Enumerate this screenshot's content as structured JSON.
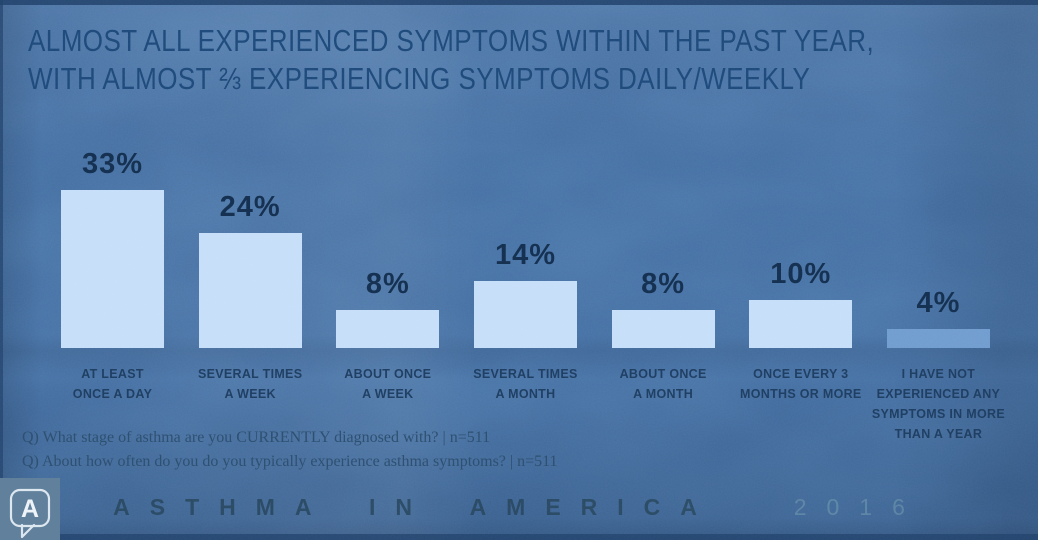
{
  "slide": {
    "title_line1": "ALMOST ALL EXPERIENCED SYMPTOMS WITHIN THE PAST YEAR,",
    "title_line2": "WITH ALMOST ⅔ EXPERIENCING SYMPTOMS DAILY/WEEKLY"
  },
  "chart_data": {
    "type": "bar",
    "title": "ALMOST ALL EXPERIENCED SYMPTOMS WITHIN THE PAST YEAR, WITH ALMOST ⅔ EXPERIENCING SYMPTOMS DAILY/WEEKLY",
    "categories": [
      "AT LEAST ONCE A DAY",
      "SEVERAL TIMES A WEEK",
      "ABOUT ONCE A WEEK",
      "SEVERAL TIMES A MONTH",
      "ABOUT ONCE A MONTH",
      "ONCE EVERY 3 MONTHS OR MORE",
      "I HAVE NOT EXPERIENCED ANY SYMPTOMS IN MORE THAN A YEAR"
    ],
    "category_label_lines": [
      "AT LEAST\nONCE A DAY",
      "SEVERAL TIMES\nA WEEK",
      "ABOUT ONCE\nA WEEK",
      "SEVERAL TIMES\nA MONTH",
      "ABOUT ONCE\nA MONTH",
      "ONCE EVERY 3\nMONTHS OR MORE",
      "I HAVE NOT\nEXPERIENCED ANY\nSYMPTOMS IN MORE\nTHAN A YEAR"
    ],
    "values": [
      33,
      24,
      8,
      14,
      8,
      10,
      4
    ],
    "value_labels": [
      "33%",
      "24%",
      "8%",
      "14%",
      "8%",
      "10%",
      "4%"
    ],
    "bar_colors": [
      "#c6def9",
      "#c6def9",
      "#c6def9",
      "#c6def9",
      "#c6def9",
      "#c6def9",
      "#6f9bce"
    ],
    "xlabel": "",
    "ylabel": "",
    "ylim": [
      0,
      35
    ],
    "grid": false,
    "legend": "none",
    "data_labels": "above bars"
  },
  "footnotes": {
    "line1": "Q) What stage of asthma are you CURRENTLY diagnosed with? | n=511",
    "line2": "Q) About how often do you do you typically experience asthma symptoms? | n=511"
  },
  "footer": {
    "brand": "ASTHMA IN AMERICA",
    "year": "2016",
    "logo_letter": "A"
  },
  "colors": {
    "background": "#4b77aa",
    "title_text": "#1c4879",
    "value_text": "#132d4d",
    "category_text": "#1c3b5f",
    "bar_fill": "#c6def9",
    "muted_bar_fill": "#6f9bce",
    "footnote_text": "#2a4c6d",
    "brand_text": "#2b4c66",
    "year_text": "#5c86a6",
    "logo_background": "#60809b",
    "edge_shadow": "#1f4069"
  }
}
